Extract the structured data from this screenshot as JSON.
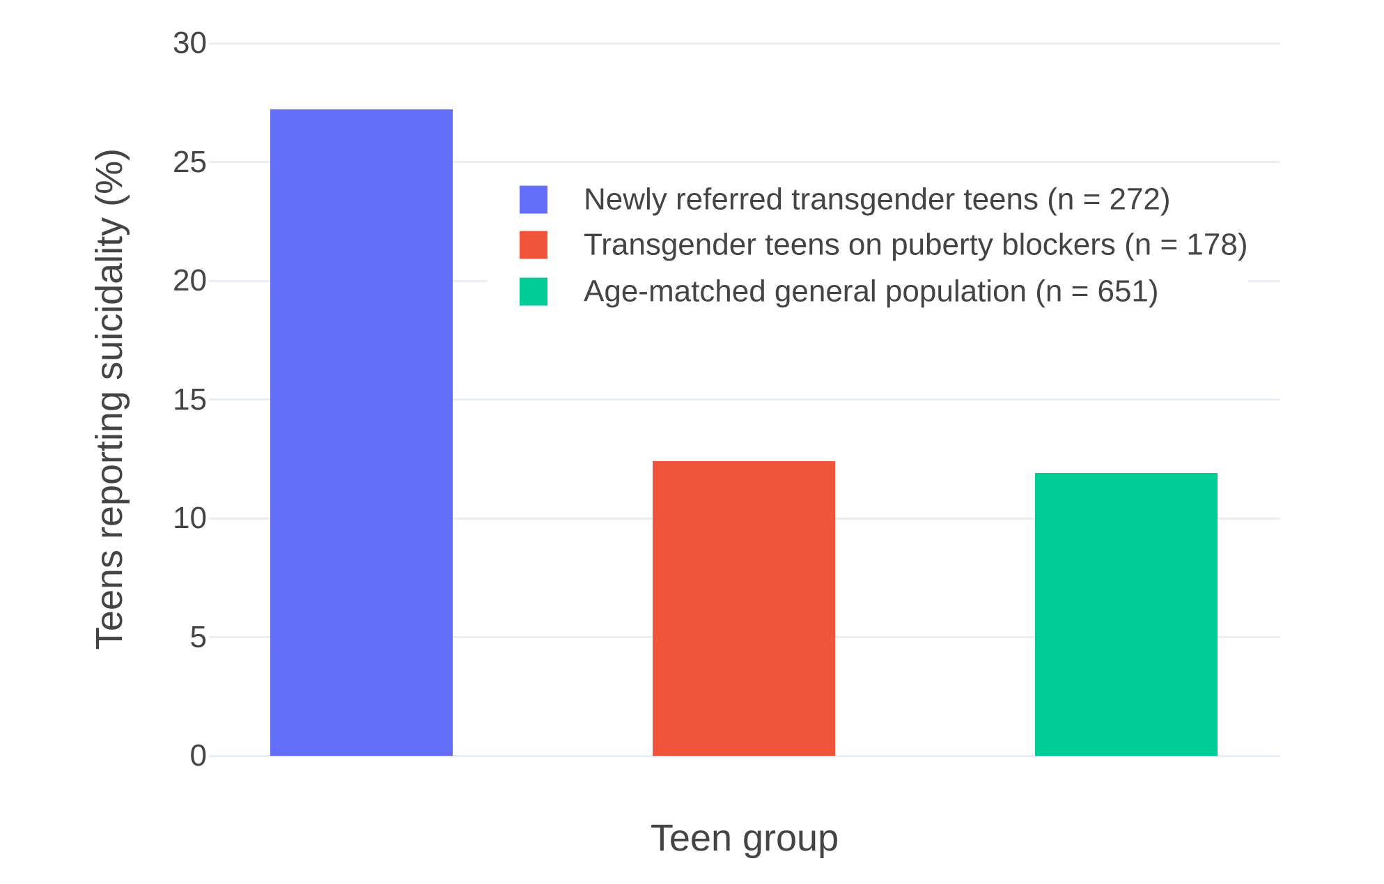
{
  "chart_data": {
    "type": "bar",
    "title": "",
    "xlabel": "Teen group",
    "ylabel": "Teens reporting suicidality (%)",
    "categories": [
      "Newly referred transgender teens (n = 272)",
      "Transgender teens on puberty blockers (n = 178)",
      "Age-matched general population (n = 651)"
    ],
    "series": [
      {
        "name": "Newly referred transgender teens (n = 272)",
        "value": 27.2,
        "color": "#636EFA"
      },
      {
        "name": "Transgender teens on puberty blockers (n = 178)",
        "value": 12.4,
        "color": "#EF553B"
      },
      {
        "name": "Age-matched general population (n = 651)",
        "value": 11.9,
        "color": "#00CC96"
      }
    ],
    "ylim": [
      0,
      30
    ],
    "yticks": [
      0,
      5,
      10,
      15,
      20,
      25,
      30
    ],
    "grid": true,
    "legend_position": "inside-top-right",
    "colors": {
      "gridline": "#E9EEF5",
      "text": "#444444",
      "background": "#FFFFFF"
    }
  }
}
